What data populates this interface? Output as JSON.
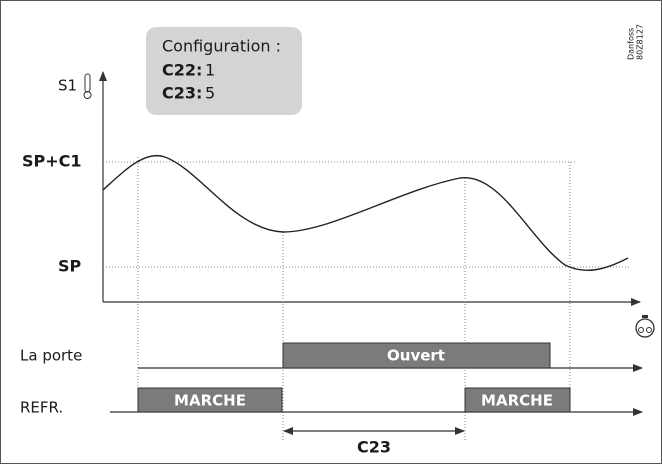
{
  "config": {
    "title": "Configuration :",
    "items": [
      {
        "key": "C22:",
        "value": 1
      },
      {
        "key": "C23:",
        "value": 5
      }
    ]
  },
  "axis": {
    "y_label": "S1",
    "levels": [
      "SP+C1",
      "SP"
    ]
  },
  "rows": [
    {
      "label": "La porte",
      "states": [
        "Ouvert"
      ]
    },
    {
      "label": "REFR.",
      "states": [
        "MARCHE",
        "MARCHE"
      ]
    }
  ],
  "interval": "C23",
  "logo": {
    "brand": "Danfoss",
    "code": "80Z8127"
  }
}
